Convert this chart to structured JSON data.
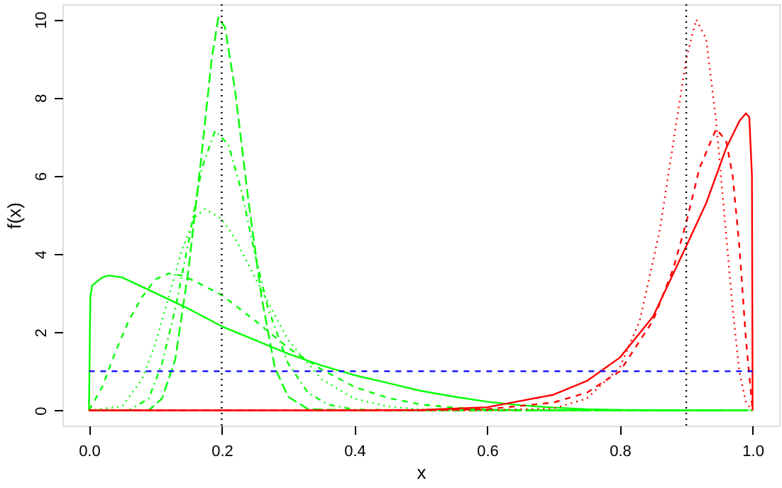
{
  "chart_data": {
    "type": "line",
    "xlabel": "x",
    "ylabel": "f(x)",
    "xlim": [
      -0.04,
      1.04
    ],
    "ylim": [
      -0.39,
      10.39
    ],
    "xticks": [
      {
        "value": 0,
        "label": "0.0"
      },
      {
        "value": 0.2,
        "label": "0.2"
      },
      {
        "value": 0.4,
        "label": "0.4"
      },
      {
        "value": 0.6,
        "label": "0.6"
      },
      {
        "value": 0.8,
        "label": "0.8"
      },
      {
        "value": 1,
        "label": "1.0"
      }
    ],
    "yticks": [
      0,
      2,
      4,
      6,
      8,
      10
    ],
    "grid": false,
    "marker": "none",
    "series": [
      {
        "color": "#00ff00",
        "line_style": "solid",
        "x": [
          0,
          0.002,
          0.005,
          0.02,
          0.03,
          0.05,
          0.1,
          0.15,
          0.2,
          0.25,
          0.3,
          0.35,
          0.4,
          0.45,
          0.5,
          0.55,
          0.6,
          0.65,
          0.7,
          0.75,
          0.8,
          0.9,
          0.95
        ],
        "values": [
          0,
          2.9,
          3.2,
          3.4,
          3.45,
          3.4,
          3.0,
          2.6,
          2.15,
          1.8,
          1.45,
          1.15,
          0.9,
          0.7,
          0.5,
          0.35,
          0.22,
          0.13,
          0.07,
          0.03,
          0.01,
          0,
          0
        ]
      },
      {
        "color": "#00ff00",
        "line_style": "dashed",
        "x": [
          0,
          0.02,
          0.04,
          0.06,
          0.08,
          0.1,
          0.12,
          0.14,
          0.16,
          0.2,
          0.25,
          0.3,
          0.35,
          0.4,
          0.45,
          0.5,
          0.55,
          0.6,
          0.7,
          1.0
        ],
        "values": [
          0,
          0.6,
          1.5,
          2.3,
          2.9,
          3.35,
          3.5,
          3.45,
          3.3,
          2.95,
          2.3,
          1.6,
          1.05,
          0.6,
          0.32,
          0.15,
          0.07,
          0.02,
          0,
          0
        ]
      },
      {
        "color": "#00ff00",
        "line_style": "dotted",
        "x": [
          0,
          0.05,
          0.08,
          0.1,
          0.12,
          0.14,
          0.16,
          0.175,
          0.2,
          0.22,
          0.25,
          0.3,
          0.35,
          0.4,
          0.45,
          0.5,
          0.6,
          1.0
        ],
        "values": [
          0,
          0.1,
          0.8,
          1.7,
          2.9,
          4.1,
          4.95,
          5.15,
          4.9,
          4.4,
          3.4,
          1.8,
          0.8,
          0.3,
          0.1,
          0.02,
          0,
          0
        ]
      },
      {
        "color": "#00ff00",
        "line_style": "dotdash",
        "x": [
          0,
          0.06,
          0.09,
          0.11,
          0.13,
          0.15,
          0.17,
          0.19,
          0.21,
          0.23,
          0.25,
          0.27,
          0.3,
          0.33,
          0.36,
          0.4,
          0.5,
          1.0
        ],
        "values": [
          0,
          0,
          0.3,
          1.2,
          2.6,
          4.3,
          6.2,
          7.15,
          6.8,
          5.6,
          4.0,
          2.6,
          1.2,
          0.45,
          0.15,
          0.02,
          0,
          0
        ]
      },
      {
        "color": "#00ff00",
        "line_style": "longdash",
        "x": [
          0,
          0.09,
          0.11,
          0.13,
          0.15,
          0.17,
          0.185,
          0.195,
          0.205,
          0.22,
          0.24,
          0.26,
          0.28,
          0.3,
          0.33,
          0.4,
          1.0
        ],
        "values": [
          0,
          0,
          0.3,
          1.3,
          3.6,
          6.6,
          9.0,
          10.05,
          9.8,
          8.2,
          5.4,
          2.9,
          1.1,
          0.35,
          0.03,
          0,
          0
        ]
      },
      {
        "color": "#ff0000",
        "line_style": "solid",
        "x": [
          0,
          0.4,
          0.5,
          0.6,
          0.7,
          0.75,
          0.8,
          0.85,
          0.9,
          0.93,
          0.96,
          0.98,
          0.99,
          0.995,
          0.999,
          1.0
        ],
        "values": [
          0,
          0,
          0.01,
          0.08,
          0.4,
          0.75,
          1.35,
          2.4,
          4.2,
          5.3,
          6.7,
          7.4,
          7.6,
          7.5,
          6.0,
          0
        ]
      },
      {
        "color": "#ff0000",
        "line_style": "dashed",
        "x": [
          0,
          0.5,
          0.6,
          0.7,
          0.75,
          0.8,
          0.85,
          0.88,
          0.9,
          0.92,
          0.945,
          0.96,
          0.97,
          0.98,
          0.99,
          1.0
        ],
        "values": [
          0,
          0,
          0.03,
          0.2,
          0.45,
          1.0,
          2.3,
          3.6,
          4.8,
          6.2,
          7.2,
          6.9,
          6.0,
          4.2,
          1.8,
          0
        ]
      },
      {
        "color": "#ff0000",
        "line_style": "dotted",
        "x": [
          0,
          0.6,
          0.7,
          0.75,
          0.8,
          0.83,
          0.86,
          0.88,
          0.9,
          0.915,
          0.93,
          0.945,
          0.96,
          0.97,
          0.98,
          0.99,
          1.0
        ],
        "values": [
          0,
          0,
          0.05,
          0.3,
          1.1,
          2.3,
          4.6,
          6.8,
          9.0,
          10.0,
          9.5,
          7.4,
          4.5,
          2.6,
          1.0,
          0.2,
          0
        ]
      },
      {
        "color": "#0000ff",
        "line_style": "dashed",
        "x": [
          0,
          1
        ],
        "values": [
          1,
          1
        ]
      }
    ],
    "ref_lines": [
      {
        "axis": "x",
        "value": 0.2,
        "color": "#000000",
        "line_style": "dotted"
      },
      {
        "axis": "x",
        "value": 0.9,
        "color": "#000000",
        "line_style": "dotted"
      }
    ]
  }
}
